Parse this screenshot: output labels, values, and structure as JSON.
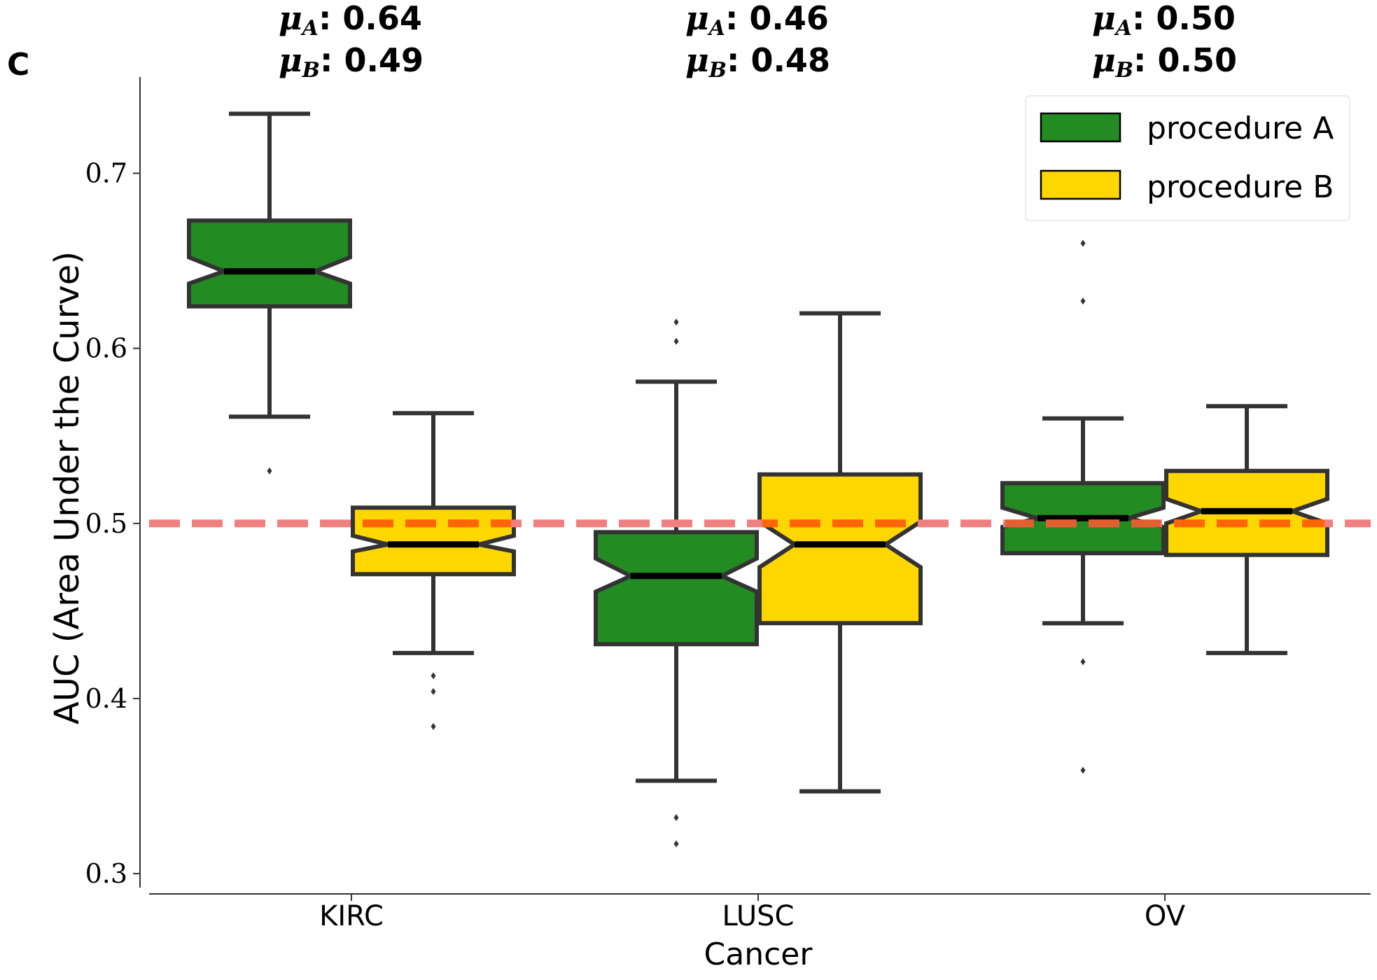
{
  "panel_label": "C",
  "colors": {
    "procedure_A": "#228b22",
    "procedure_B": "#ffd700",
    "box_edge": "#333333",
    "median": "#000000",
    "reference_line": "#f08080",
    "reference_line_overlay": "#ff6600"
  },
  "annotations": [
    {
      "mu_a_symbol": "μ",
      "mu_a_sub": "A",
      "mu_a_value": "0.64",
      "mu_b_symbol": "μ",
      "mu_b_sub": "B",
      "mu_b_value": "0.49"
    },
    {
      "mu_a_symbol": "μ",
      "mu_a_sub": "A",
      "mu_a_value": "0.46",
      "mu_b_symbol": "μ",
      "mu_b_sub": "B",
      "mu_b_value": "0.48"
    },
    {
      "mu_a_symbol": "μ",
      "mu_a_sub": "A",
      "mu_a_value": "0.50",
      "mu_b_symbol": "μ",
      "mu_b_sub": "B",
      "mu_b_value": "0.50"
    }
  ],
  "chart_data": {
    "type": "box",
    "notched": true,
    "categories": [
      "KIRC",
      "LUSC",
      "OV"
    ],
    "xlabel": "Cancer",
    "ylabel": "AUC (Area Under the Curve)",
    "ylim": [
      0.292,
      0.755
    ],
    "yticks": [
      "0.3",
      "0.4",
      "0.5",
      "0.6",
      "0.7"
    ],
    "ytick_values": [
      0.3,
      0.4,
      0.5,
      0.6,
      0.7
    ],
    "reference_line": 0.5,
    "legend_position": "top-right",
    "grid": false,
    "series": [
      {
        "name": "procedure A",
        "boxes": [
          {
            "whisker_low": 0.561,
            "q1": 0.624,
            "median": 0.644,
            "q3": 0.673,
            "whisker_high": 0.734,
            "notch_low": 0.637,
            "notch_high": 0.652,
            "outliers": [
              0.53
            ]
          },
          {
            "whisker_low": 0.353,
            "q1": 0.431,
            "median": 0.47,
            "q3": 0.495,
            "whisker_high": 0.581,
            "notch_low": 0.461,
            "notch_high": 0.48,
            "outliers": [
              0.604,
              0.615,
              0.332,
              0.317
            ]
          },
          {
            "whisker_low": 0.443,
            "q1": 0.483,
            "median": 0.503,
            "q3": 0.523,
            "whisker_high": 0.56,
            "notch_low": 0.498,
            "notch_high": 0.509,
            "outliers": [
              0.66,
              0.627,
              0.421,
              0.359
            ]
          }
        ]
      },
      {
        "name": "procedure B",
        "boxes": [
          {
            "whisker_low": 0.426,
            "q1": 0.471,
            "median": 0.488,
            "q3": 0.509,
            "whisker_high": 0.563,
            "notch_low": 0.484,
            "notch_high": 0.493,
            "outliers": [
              0.413,
              0.404,
              0.384
            ]
          },
          {
            "whisker_low": 0.347,
            "q1": 0.443,
            "median": 0.488,
            "q3": 0.528,
            "whisker_high": 0.62,
            "notch_low": 0.475,
            "notch_high": 0.501,
            "outliers": []
          },
          {
            "whisker_low": 0.426,
            "q1": 0.482,
            "median": 0.507,
            "q3": 0.53,
            "whisker_high": 0.567,
            "notch_low": 0.5,
            "notch_high": 0.514,
            "outliers": []
          }
        ]
      }
    ]
  }
}
